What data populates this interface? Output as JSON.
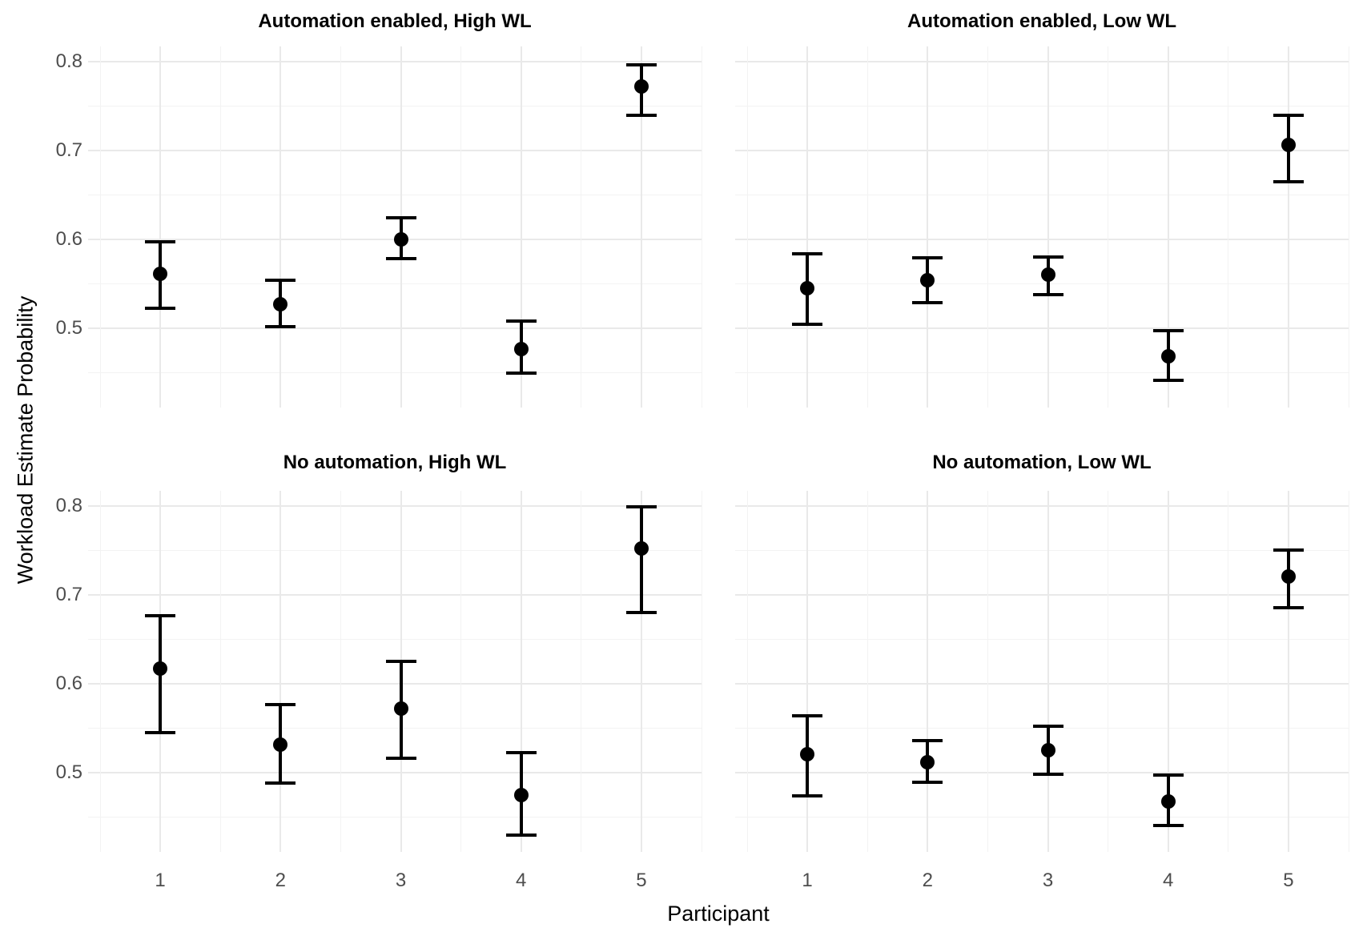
{
  "figure": {
    "y_axis_title": "Workload Estimate Probability",
    "x_axis_title": "Participant",
    "background_color": "#ffffff",
    "point_color": "#000000",
    "errorbar_color": "#000000",
    "grid_major_color": "#e9e9e9",
    "grid_minor_color": "#f3f3f3",
    "tick_label_color": "#4d4d4d",
    "title_color": "#000000"
  },
  "chart_data": {
    "type": "scatter",
    "title": "",
    "xlabel": "Participant",
    "ylabel": "Workload Estimate Probability",
    "legend": "none",
    "grid": "on",
    "error_bars": true,
    "x_ticks": [
      1,
      2,
      3,
      4,
      5
    ],
    "x_tick_labels": [
      "1",
      "2",
      "3",
      "4",
      "5"
    ],
    "y_ticks": [
      0.5,
      0.6,
      0.7,
      0.8
    ],
    "y_tick_labels": [
      "0.5",
      "0.6",
      "0.7",
      "0.8"
    ],
    "y_minor_ticks": [
      0.45,
      0.55,
      0.65,
      0.75
    ],
    "x_minor_ticks": [
      0.5,
      1.5,
      2.5,
      3.5,
      4.5,
      5.5
    ],
    "xlim": [
      0.4,
      5.5
    ],
    "ylim": [
      0.411,
      0.817
    ],
    "facets": [
      {
        "title": "Automation enabled, High WL",
        "row": 0,
        "col": 0,
        "points": [
          {
            "x": 1,
            "y": 0.561,
            "low": 0.523,
            "high": 0.597
          },
          {
            "x": 2,
            "y": 0.527,
            "low": 0.502,
            "high": 0.554
          },
          {
            "x": 3,
            "y": 0.6,
            "low": 0.578,
            "high": 0.624
          },
          {
            "x": 4,
            "y": 0.477,
            "low": 0.45,
            "high": 0.508
          },
          {
            "x": 5,
            "y": 0.772,
            "low": 0.74,
            "high": 0.796
          }
        ]
      },
      {
        "title": "Automation enabled, Low WL",
        "row": 0,
        "col": 1,
        "points": [
          {
            "x": 1,
            "y": 0.545,
            "low": 0.505,
            "high": 0.584
          },
          {
            "x": 2,
            "y": 0.554,
            "low": 0.529,
            "high": 0.579
          },
          {
            "x": 3,
            "y": 0.56,
            "low": 0.538,
            "high": 0.58
          },
          {
            "x": 4,
            "y": 0.469,
            "low": 0.442,
            "high": 0.497
          },
          {
            "x": 5,
            "y": 0.706,
            "low": 0.665,
            "high": 0.74
          }
        ]
      },
      {
        "title": "No automation, High WL",
        "row": 1,
        "col": 0,
        "points": [
          {
            "x": 1,
            "y": 0.617,
            "low": 0.545,
            "high": 0.677
          },
          {
            "x": 2,
            "y": 0.532,
            "low": 0.488,
            "high": 0.577
          },
          {
            "x": 3,
            "y": 0.572,
            "low": 0.516,
            "high": 0.625
          },
          {
            "x": 4,
            "y": 0.475,
            "low": 0.43,
            "high": 0.523
          },
          {
            "x": 5,
            "y": 0.752,
            "low": 0.68,
            "high": 0.799
          }
        ]
      },
      {
        "title": "No automation, Low WL",
        "row": 1,
        "col": 1,
        "points": [
          {
            "x": 1,
            "y": 0.521,
            "low": 0.474,
            "high": 0.564
          },
          {
            "x": 2,
            "y": 0.512,
            "low": 0.489,
            "high": 0.536
          },
          {
            "x": 3,
            "y": 0.525,
            "low": 0.498,
            "high": 0.552
          },
          {
            "x": 4,
            "y": 0.468,
            "low": 0.441,
            "high": 0.497
          },
          {
            "x": 5,
            "y": 0.721,
            "low": 0.686,
            "high": 0.75
          }
        ]
      }
    ]
  }
}
